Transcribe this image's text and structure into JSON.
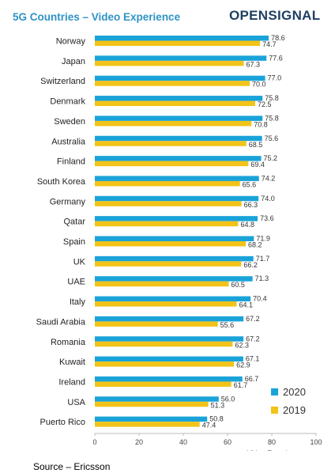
{
  "header": {
    "title": "5G Countries – Video Experience",
    "brand": "OPENSIGNAL"
  },
  "footer": {
    "source": "Source – Ericsson"
  },
  "colors": {
    "title": "#2f93c6",
    "brand": "#1f3f63",
    "series_2020": "#1aa3d9",
    "series_2019": "#f2c318"
  },
  "chart_data": {
    "type": "bar",
    "orientation": "horizontal",
    "title": "5G Countries – Video Experience",
    "xlabel": "Video Experience",
    "ylabel": "",
    "xlim": [
      0,
      100
    ],
    "xticks": [
      0,
      20,
      40,
      60,
      80,
      100
    ],
    "grid": false,
    "legend_position": "right",
    "categories": [
      "Norway",
      "Japan",
      "Switzerland",
      "Denmark",
      "Sweden",
      "Australia",
      "Finland",
      "South Korea",
      "Germany",
      "Qatar",
      "Spain",
      "UK",
      "UAE",
      "Italy",
      "Saudi Arabia",
      "Romania",
      "Kuwait",
      "Ireland",
      "USA",
      "Puerto Rico"
    ],
    "series": [
      {
        "name": "2020",
        "color": "#1aa3d9",
        "values": [
          78.6,
          77.6,
          77.0,
          75.8,
          75.8,
          75.6,
          75.2,
          74.2,
          74.0,
          73.6,
          71.9,
          71.7,
          71.3,
          70.4,
          67.2,
          67.2,
          67.1,
          66.7,
          56.0,
          50.8
        ],
        "labels": [
          "78.6",
          "77.6",
          "77.0",
          "75.8",
          "75.8",
          "75.6",
          "75.2",
          "74.2",
          "74.0",
          "73.6",
          "71.9",
          "71.7",
          "71.3",
          "70.4",
          "67.2",
          "67.2",
          "67.1",
          "66.7",
          "56.0",
          "50.8"
        ]
      },
      {
        "name": "2019",
        "color": "#f2c318",
        "values": [
          74.7,
          67.3,
          70.0,
          72.5,
          70.8,
          68.5,
          69.4,
          65.6,
          66.3,
          64.8,
          68.2,
          66.2,
          60.5,
          64.1,
          55.6,
          62.3,
          62.9,
          61.7,
          51.3,
          47.4
        ],
        "labels": [
          "74.7",
          "67.3",
          "70.0",
          "72.5",
          "70.8",
          "68.5",
          "69.4",
          "65.6",
          "66.3",
          "64.8",
          "68.2",
          "66.2",
          "60.5",
          "64.1",
          "55.6",
          "62.3",
          "62.9",
          "61.7",
          "51.3",
          "47.4"
        ]
      }
    ]
  }
}
